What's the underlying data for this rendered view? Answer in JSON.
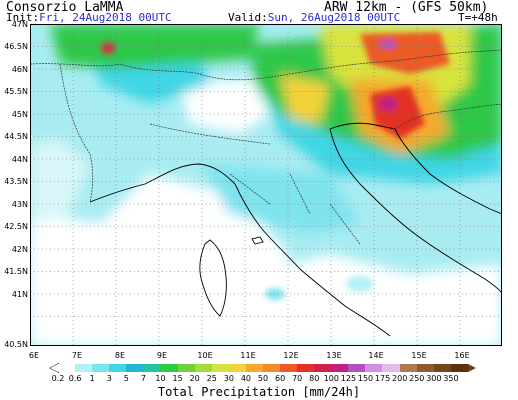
{
  "header": {
    "org": "Consorzio LaMMA",
    "model": "ARW 12km - (GFS 50km)",
    "init_label": "Init:",
    "init_value": "Fri, 24Aug2018 00UTC",
    "valid_label": "Valid:",
    "valid_value": "Sun, 26Aug2018 00UTC",
    "lead": "T=+48h"
  },
  "axes": {
    "lat_labels": [
      "47N",
      "46.5N",
      "46N",
      "45.5N",
      "45N",
      "44.5N",
      "44N",
      "43.5N",
      "43N",
      "42.5N",
      "42N",
      "41.5N",
      "41N",
      "40.5N"
    ],
    "lon_labels": [
      "6E",
      "7E",
      "8E",
      "9E",
      "10E",
      "11E",
      "12E",
      "13E",
      "14E",
      "15E",
      "16E"
    ]
  },
  "scale": {
    "labels": [
      "0.2",
      "0.6",
      "1",
      "3",
      "5",
      "7",
      "10",
      "15",
      "20",
      "25",
      "30",
      "40",
      "50",
      "60",
      "70",
      "80",
      "100",
      "125",
      "150",
      "175",
      "200",
      "250",
      "300",
      "350"
    ],
    "colors": [
      "#ffffff",
      "#b4f0f5",
      "#7fe3ee",
      "#40d6e5",
      "#1fb8d6",
      "#27c2a0",
      "#2ec84a",
      "#6fd23a",
      "#a6dc3a",
      "#d8e43c",
      "#f2d23a",
      "#f5a92f",
      "#f08a2a",
      "#ec5a26",
      "#e43322",
      "#d11f4e",
      "#c02080",
      "#b64fc0",
      "#d58fe0",
      "#e6b8ee",
      "#b07a4a",
      "#8e5a2e",
      "#74461c",
      "#5c3212"
    ]
  },
  "footer": {
    "title": "Total Precipitation [mm/24h]"
  }
}
